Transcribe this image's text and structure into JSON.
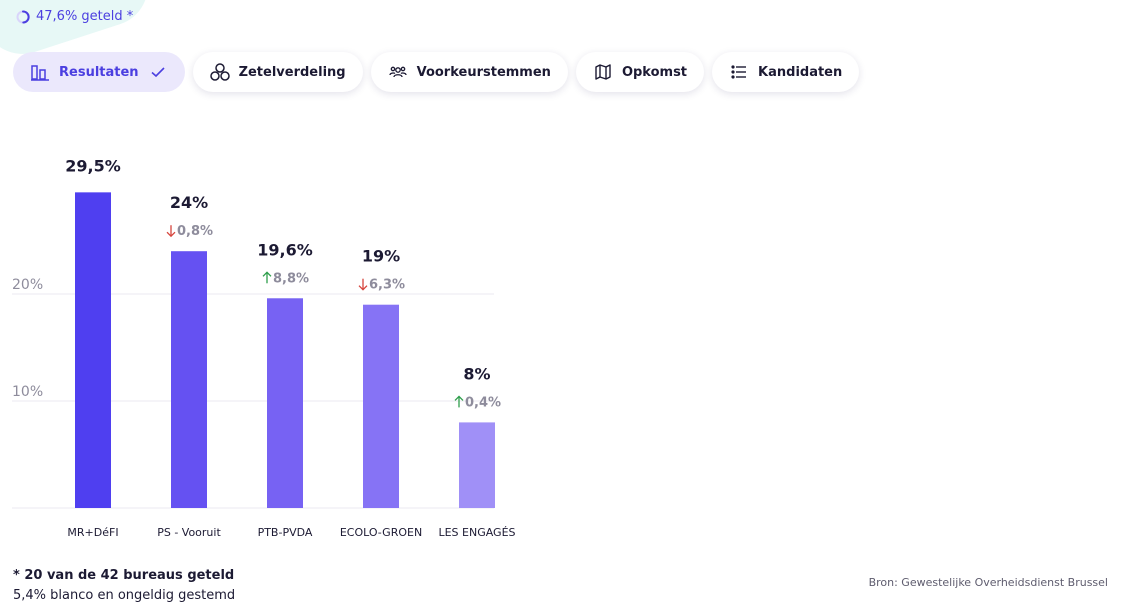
{
  "progress": {
    "text": "47,6% geteld *"
  },
  "tabs": [
    {
      "label": "Resultaten",
      "icon": "bar-chart-icon",
      "active": true
    },
    {
      "label": "Zetelverdeling",
      "icon": "circles-icon",
      "active": false
    },
    {
      "label": "Voorkeurstemmen",
      "icon": "people-icon",
      "active": false
    },
    {
      "label": "Opkomst",
      "icon": "map-icon",
      "active": false
    },
    {
      "label": "Kandidaten",
      "icon": "list-icon",
      "active": false
    }
  ],
  "chart_data": {
    "type": "bar",
    "categories": [
      "MR+DéFI",
      "PS - Vooruit",
      "PTB-PVDA",
      "ECOLO-GROEN",
      "LES ENGAGÉS"
    ],
    "values": [
      29.5,
      24,
      19.6,
      19,
      8
    ],
    "value_labels": [
      "29,5%",
      "24%",
      "19,6%",
      "19%",
      "8%"
    ],
    "changes": [
      null,
      {
        "direction": "down",
        "label": "0,8%"
      },
      {
        "direction": "up",
        "label": "8,8%"
      },
      {
        "direction": "down",
        "label": "6,3%"
      },
      {
        "direction": "up",
        "label": "0,4%"
      }
    ],
    "yticks": [
      {
        "value": 10,
        "label": "10%"
      },
      {
        "value": 20,
        "label": "20%"
      }
    ],
    "grid": true,
    "bar_colors": [
      "#4f3ff0",
      "#6551f2",
      "#7762f3",
      "#8673f5",
      "#a090f7"
    ],
    "change_colors": {
      "up": "#2e9e4b",
      "down": "#d6453d"
    }
  },
  "footnote": {
    "bold": "* 20 van de 42 bureaus geteld",
    "line2": "5,4% blanco en ongeldig gestemd"
  },
  "source": "Bron: Gewestelijke Overheidsdienst Brussel"
}
